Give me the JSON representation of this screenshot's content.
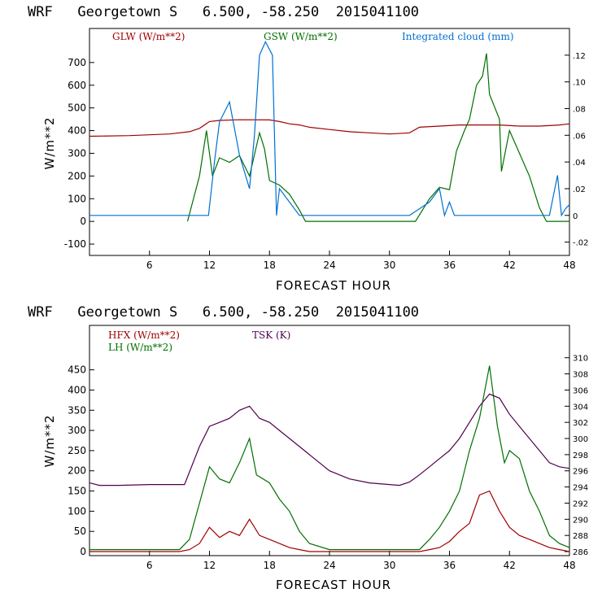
{
  "chart_data": [
    {
      "type": "line",
      "title": "WRF   Georgetown S   6.500, -58.250  2015041100",
      "xlabel": "FORECAST HOUR",
      "ylabel": "W/m**2",
      "xlim": [
        0,
        48
      ],
      "x_ticks": [
        "6",
        "12",
        "18",
        "24",
        "30",
        "36",
        "42",
        "48"
      ],
      "ylim": [
        -150,
        850
      ],
      "y_ticks": [
        "-100",
        "0",
        "100",
        "200",
        "300",
        "400",
        "500",
        "600",
        "700"
      ],
      "y2lim": [
        -0.03,
        0.14
      ],
      "y2_ticks": [
        "-.02",
        "0",
        ".02",
        ".04",
        ".06",
        ".08",
        ".10",
        ".12"
      ],
      "series": [
        {
          "name": "GLW (W/m**2)",
          "color": "#a00000",
          "axis": "left",
          "points": [
            [
              0,
              375
            ],
            [
              4,
              378
            ],
            [
              8,
              385
            ],
            [
              10,
              395
            ],
            [
              11,
              410
            ],
            [
              12,
              440
            ],
            [
              13,
              445
            ],
            [
              15,
              448
            ],
            [
              18,
              447
            ],
            [
              19,
              440
            ],
            [
              20,
              430
            ],
            [
              21,
              425
            ],
            [
              22,
              415
            ],
            [
              24,
              405
            ],
            [
              26,
              395
            ],
            [
              28,
              390
            ],
            [
              30,
              385
            ],
            [
              32,
              390
            ],
            [
              33,
              415
            ],
            [
              35,
              420
            ],
            [
              37,
              425
            ],
            [
              39,
              425
            ],
            [
              41,
              425
            ],
            [
              43,
              420
            ],
            [
              45,
              420
            ],
            [
              47,
              425
            ],
            [
              48,
              430
            ]
          ]
        },
        {
          "name": "GSW (W/m**2)",
          "color": "#007000",
          "axis": "left",
          "points": [
            [
              9.8,
              0
            ],
            [
              11,
              200
            ],
            [
              11.7,
              400
            ],
            [
              12.3,
              200
            ],
            [
              13,
              280
            ],
            [
              14,
              260
            ],
            [
              15,
              290
            ],
            [
              16,
              200
            ],
            [
              17,
              390
            ],
            [
              17.5,
              320
            ],
            [
              18,
              180
            ],
            [
              19,
              160
            ],
            [
              20,
              120
            ],
            [
              21,
              50
            ],
            [
              21.6,
              0
            ],
            [
              32.6,
              0
            ],
            [
              34,
              100
            ],
            [
              35,
              150
            ],
            [
              36,
              140
            ],
            [
              36.7,
              310
            ],
            [
              37.5,
              400
            ],
            [
              38,
              450
            ],
            [
              38.7,
              600
            ],
            [
              39.3,
              640
            ],
            [
              39.7,
              740
            ],
            [
              40,
              560
            ],
            [
              41,
              450
            ],
            [
              41.2,
              220
            ],
            [
              42,
              400
            ],
            [
              43,
              300
            ],
            [
              44,
              200
            ],
            [
              45,
              60
            ],
            [
              45.7,
              0
            ],
            [
              48,
              0
            ]
          ]
        },
        {
          "name": "Integrated cloud (mm)",
          "color": "#0070d0",
          "axis": "right",
          "points": [
            [
              0,
              0
            ],
            [
              11.9,
              0
            ],
            [
              12.5,
              0.04
            ],
            [
              13,
              0.07
            ],
            [
              14,
              0.085
            ],
            [
              15,
              0.045
            ],
            [
              16,
              0.02
            ],
            [
              16.5,
              0.06
            ],
            [
              17,
              0.12
            ],
            [
              17.6,
              0.13
            ],
            [
              18.3,
              0.12
            ],
            [
              18.7,
              0
            ],
            [
              19,
              0.02
            ],
            [
              20,
              0.01
            ],
            [
              21,
              0
            ],
            [
              32,
              0
            ],
            [
              34,
              0.01
            ],
            [
              35,
              0.02
            ],
            [
              35.5,
              0
            ],
            [
              36,
              0.01
            ],
            [
              36.5,
              0
            ],
            [
              40,
              0
            ],
            [
              42,
              0
            ],
            [
              44,
              0
            ],
            [
              45,
              0
            ],
            [
              46,
              0
            ],
            [
              46.8,
              0.03
            ],
            [
              47.2,
              0
            ],
            [
              47.6,
              0.005
            ],
            [
              48,
              0.008
            ]
          ]
        }
      ]
    },
    {
      "type": "line",
      "title": "WRF   Georgetown S   6.500, -58.250  2015041100",
      "xlabel": "FORECAST HOUR",
      "ylabel": "W/m**2",
      "xlim": [
        0,
        48
      ],
      "x_ticks": [
        "6",
        "12",
        "18",
        "24",
        "30",
        "36",
        "42",
        "48"
      ],
      "ylim": [
        -10,
        560
      ],
      "y_ticks": [
        "0",
        "50",
        "100",
        "150",
        "200",
        "250",
        "300",
        "350",
        "400",
        "450"
      ],
      "y2lim": [
        285.5,
        314
      ],
      "y2_ticks": [
        "286",
        "288",
        "290",
        "292",
        "294",
        "296",
        "298",
        "300",
        "302",
        "304",
        "306",
        "308",
        "310"
      ],
      "series": [
        {
          "name": "HFX (W/m**2)",
          "color": "#a00000",
          "axis": "left",
          "points": [
            [
              0,
              0
            ],
            [
              9,
              0
            ],
            [
              10,
              5
            ],
            [
              11,
              20
            ],
            [
              12,
              60
            ],
            [
              13,
              35
            ],
            [
              14,
              50
            ],
            [
              15,
              40
            ],
            [
              16,
              80
            ],
            [
              17,
              40
            ],
            [
              18,
              30
            ],
            [
              19,
              20
            ],
            [
              20,
              10
            ],
            [
              21,
              5
            ],
            [
              22,
              0
            ],
            [
              30,
              0
            ],
            [
              33,
              0
            ],
            [
              34,
              5
            ],
            [
              35,
              10
            ],
            [
              36,
              25
            ],
            [
              37,
              50
            ],
            [
              38,
              70
            ],
            [
              39,
              140
            ],
            [
              40,
              150
            ],
            [
              41,
              100
            ],
            [
              42,
              60
            ],
            [
              43,
              40
            ],
            [
              44,
              30
            ],
            [
              45,
              20
            ],
            [
              46,
              10
            ],
            [
              47,
              5
            ],
            [
              48,
              0
            ]
          ]
        },
        {
          "name": "LH (W/m**2)",
          "color": "#007000",
          "axis": "left",
          "points": [
            [
              0,
              5
            ],
            [
              9,
              5
            ],
            [
              10,
              30
            ],
            [
              11,
              120
            ],
            [
              12,
              210
            ],
            [
              13,
              180
            ],
            [
              14,
              170
            ],
            [
              15,
              220
            ],
            [
              16,
              280
            ],
            [
              16.7,
              190
            ],
            [
              18,
              170
            ],
            [
              19,
              130
            ],
            [
              20,
              100
            ],
            [
              21,
              50
            ],
            [
              22,
              20
            ],
            [
              24,
              5
            ],
            [
              30,
              5
            ],
            [
              33,
              5
            ],
            [
              34,
              30
            ],
            [
              35,
              60
            ],
            [
              36,
              100
            ],
            [
              37,
              150
            ],
            [
              38,
              250
            ],
            [
              39,
              330
            ],
            [
              40,
              460
            ],
            [
              40.8,
              310
            ],
            [
              41.5,
              220
            ],
            [
              42,
              250
            ],
            [
              43,
              230
            ],
            [
              44,
              150
            ],
            [
              45,
              100
            ],
            [
              46,
              40
            ],
            [
              47,
              20
            ],
            [
              48,
              10
            ]
          ]
        },
        {
          "name": "TSK (K)",
          "color": "#500050",
          "axis": "right",
          "points": [
            [
              0,
              294.5
            ],
            [
              1,
              294.2
            ],
            [
              3,
              294.2
            ],
            [
              6,
              294.3
            ],
            [
              9.5,
              294.3
            ],
            [
              11,
              299
            ],
            [
              12,
              301.5
            ],
            [
              13,
              302
            ],
            [
              14,
              302.5
            ],
            [
              15,
              303.5
            ],
            [
              16,
              304
            ],
            [
              17,
              302.5
            ],
            [
              18,
              302
            ],
            [
              19,
              301
            ],
            [
              20,
              300
            ],
            [
              21,
              299
            ],
            [
              22,
              298
            ],
            [
              23,
              297
            ],
            [
              24,
              296
            ],
            [
              26,
              295
            ],
            [
              28,
              294.5
            ],
            [
              31,
              294.2
            ],
            [
              32,
              294.6
            ],
            [
              33,
              295.5
            ],
            [
              34,
              296.5
            ],
            [
              35,
              297.5
            ],
            [
              36,
              298.5
            ],
            [
              37,
              300
            ],
            [
              38,
              302
            ],
            [
              39,
              304
            ],
            [
              40,
              305.5
            ],
            [
              41,
              305
            ],
            [
              42,
              303
            ],
            [
              43,
              301.5
            ],
            [
              44,
              300
            ],
            [
              45,
              298.5
            ],
            [
              46,
              297
            ],
            [
              47,
              296.5
            ],
            [
              48,
              296.3
            ]
          ]
        }
      ]
    }
  ]
}
